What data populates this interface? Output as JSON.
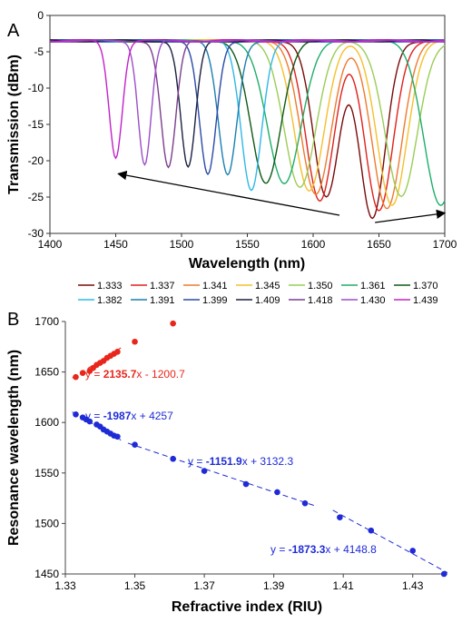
{
  "colors": {
    "red_series": "#e8261b",
    "blue_series": "#1f2bd6",
    "axis": "#222222"
  },
  "chart_data": [
    {
      "panel_label": "A",
      "type": "line",
      "xlabel": "Wavelength (nm)",
      "ylabel": "Transmission (dBm)",
      "xlim": [
        1400,
        1700
      ],
      "ylim": [
        -30,
        0
      ],
      "xticks": [
        1400,
        1450,
        1500,
        1550,
        1600,
        1650,
        1700
      ],
      "yticks": [
        0,
        -5,
        -10,
        -15,
        -20,
        -25,
        -30
      ],
      "baseline_dbm": -3.5,
      "legend_position": "below",
      "legend_rows": [
        [
          "1.333",
          "1.337",
          "1.341",
          "1.345",
          "1.350",
          "1.361",
          "1.370"
        ],
        [
          "1.382",
          "1.391",
          "1.399",
          "1.409",
          "1.418",
          "1.430",
          "1.439"
        ]
      ],
      "series": [
        {
          "name": "1.333",
          "color": "#7a0a0a",
          "dip_main": 1645,
          "depth_main": -28.0,
          "dip_second": 1610,
          "depth_second": -25.0,
          "width": 14
        },
        {
          "name": "1.337",
          "color": "#e0201c",
          "dip_main": 1650,
          "depth_main": -27.0,
          "dip_second": 1605,
          "depth_second": -25.5,
          "width": 15
        },
        {
          "name": "1.341",
          "color": "#ee7a2e",
          "dip_main": 1656,
          "depth_main": -26.5,
          "dip_second": 1602,
          "depth_second": -24.5,
          "width": 16
        },
        {
          "name": "1.345",
          "color": "#f5c02a",
          "dip_main": 1660,
          "depth_main": -26.0,
          "dip_second": 1597,
          "depth_second": -24.0,
          "width": 16
        },
        {
          "name": "1.350",
          "color": "#9acd55",
          "dip_main": 1667,
          "depth_main": -25.0,
          "dip_second": 1590,
          "depth_second": -23.5,
          "width": 17
        },
        {
          "name": "1.361",
          "color": "#1eae6a",
          "dip_main": 1697,
          "depth_main": -26.0,
          "dip_second": 1578,
          "depth_second": -23.0,
          "width": 18
        },
        {
          "name": "1.370",
          "color": "#0f5a16",
          "dip_main": 1564,
          "depth_main": -23.0,
          "dip_second": 0,
          "depth_second": 0,
          "width": 16
        },
        {
          "name": "1.382",
          "color": "#2fb8e6",
          "dip_main": 1553,
          "depth_main": -24.0,
          "dip_second": 0,
          "depth_second": 0,
          "width": 11
        },
        {
          "name": "1.391",
          "color": "#1a7fb0",
          "dip_main": 1535,
          "depth_main": -22.0,
          "dip_second": 0,
          "depth_second": 0,
          "width": 10
        },
        {
          "name": "1.399",
          "color": "#2a4aa5",
          "dip_main": 1520,
          "depth_main": -22.0,
          "dip_second": 0,
          "depth_second": 0,
          "width": 9
        },
        {
          "name": "1.409",
          "color": "#1a2140",
          "dip_main": 1505,
          "depth_main": -21.0,
          "dip_second": 0,
          "depth_second": 0,
          "width": 8
        },
        {
          "name": "1.418",
          "color": "#7a3e8e",
          "dip_main": 1490,
          "depth_main": -21.0,
          "dip_second": 0,
          "depth_second": 0,
          "width": 8
        },
        {
          "name": "1.430",
          "color": "#9b4fc8",
          "dip_main": 1472,
          "depth_main": -20.5,
          "dip_second": 0,
          "depth_second": 0,
          "width": 7
        },
        {
          "name": "1.439",
          "color": "#c222c8",
          "dip_main": 1450,
          "depth_main": -19.5,
          "dip_second": 0,
          "depth_second": 0,
          "width": 7
        }
      ],
      "annotations": [
        {
          "type": "arrow",
          "from": [
            1620,
            -27.5
          ],
          "to": [
            1452,
            -21.8
          ]
        },
        {
          "type": "arrow",
          "from": [
            1647,
            -28.5
          ],
          "to": [
            1700,
            -27.2
          ]
        }
      ]
    },
    {
      "panel_label": "B",
      "type": "scatter",
      "xlabel": "Refractive index (RIU)",
      "ylabel": "Resonance wavelength (nm)",
      "xlim": [
        1.33,
        1.44
      ],
      "ylim": [
        1450,
        1700
      ],
      "xticks": [
        1.33,
        1.35,
        1.37,
        1.39,
        1.41,
        1.43
      ],
      "yticks": [
        1450,
        1500,
        1550,
        1600,
        1650,
        1700
      ],
      "series": [
        {
          "name": "red",
          "color": "#e8261b",
          "points": [
            [
              1.333,
              1645
            ],
            [
              1.335,
              1649
            ],
            [
              1.337,
              1651
            ],
            [
              1.338,
              1654
            ],
            [
              1.339,
              1657
            ],
            [
              1.34,
              1659
            ],
            [
              1.341,
              1661
            ],
            [
              1.342,
              1664
            ],
            [
              1.343,
              1666
            ],
            [
              1.344,
              1668
            ],
            [
              1.345,
              1670
            ],
            [
              1.35,
              1680
            ],
            [
              1.361,
              1698
            ]
          ]
        },
        {
          "name": "blue",
          "color": "#1f2bd6",
          "points": [
            [
              1.333,
              1608
            ],
            [
              1.335,
              1605
            ],
            [
              1.336,
              1603
            ],
            [
              1.337,
              1601
            ],
            [
              1.339,
              1598
            ],
            [
              1.34,
              1596
            ],
            [
              1.341,
              1593
            ],
            [
              1.342,
              1591
            ],
            [
              1.343,
              1589
            ],
            [
              1.344,
              1587
            ],
            [
              1.345,
              1586
            ],
            [
              1.35,
              1578
            ],
            [
              1.361,
              1564
            ],
            [
              1.37,
              1552
            ],
            [
              1.382,
              1539
            ],
            [
              1.391,
              1531
            ],
            [
              1.399,
              1520
            ],
            [
              1.409,
              1506
            ],
            [
              1.418,
              1493
            ],
            [
              1.43,
              1473
            ],
            [
              1.439,
              1450
            ]
          ]
        }
      ],
      "fits": [
        {
          "color": "#e8261b",
          "x_range": [
            1.332,
            1.346
          ],
          "slope": 2135.7,
          "intercept": -1200.7,
          "label_pre": "y = ",
          "label_slope": "2135.7",
          "label_post": "x - 1200.7"
        },
        {
          "color": "#1f2bd6",
          "x_range": [
            1.332,
            1.346
          ],
          "slope": -1987,
          "intercept": 4257,
          "label_pre": "y = ",
          "label_slope": "-1987",
          "label_post": "x + 4257"
        },
        {
          "color": "#1f2bd6",
          "x_range": [
            1.348,
            1.402
          ],
          "slope": -1151.9,
          "intercept": 3132.3,
          "label_pre": "y = ",
          "label_slope": "-1151.9",
          "label_post": "x + 3132.3"
        },
        {
          "color": "#1f2bd6",
          "x_range": [
            1.407,
            1.44
          ],
          "slope": -1873.3,
          "intercept": 4148.8,
          "label_pre": "y = ",
          "label_slope": "-1873.3",
          "label_post": "x + 4148.8"
        }
      ]
    }
  ]
}
